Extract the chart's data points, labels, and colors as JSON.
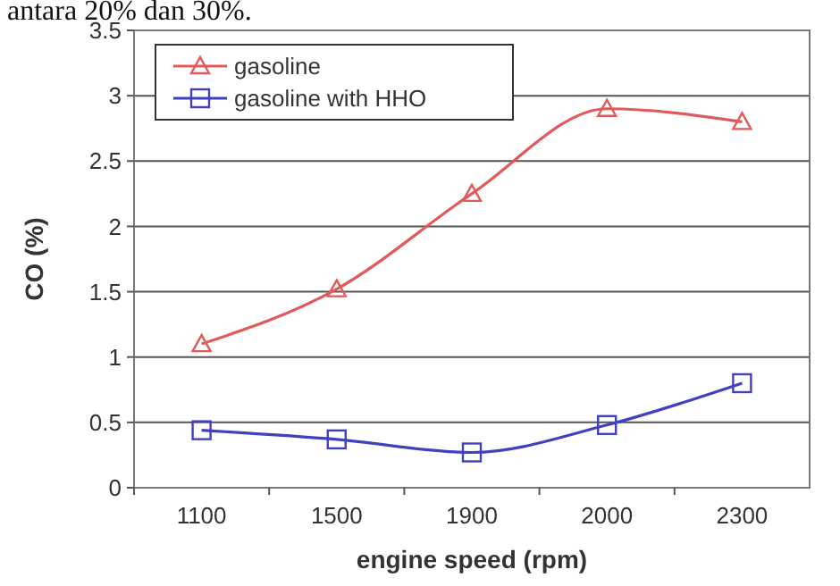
{
  "chart_data": {
    "type": "line",
    "xlabel": "engine speed (rpm)",
    "ylabel": "CO (%)",
    "annotations": [
      "antara 20% dan 30%."
    ],
    "categories": [
      "1100",
      "1500",
      "1900",
      "2000",
      "2300"
    ],
    "series": [
      {
        "name": "gasoline",
        "color": "#e05a5a",
        "marker": "triangle",
        "values": [
          1.1,
          1.52,
          2.25,
          2.9,
          2.8
        ]
      },
      {
        "name": "gasoline with HHO",
        "color": "#4040c0",
        "marker": "square",
        "values": [
          0.44,
          0.37,
          0.27,
          0.48,
          0.8
        ]
      }
    ],
    "ylim": [
      0,
      3.5
    ],
    "yticks": [
      0,
      0.5,
      1,
      1.5,
      2,
      2.5,
      3,
      3.5
    ],
    "grid": "y",
    "legend": "top left",
    "line_style": "solid"
  }
}
